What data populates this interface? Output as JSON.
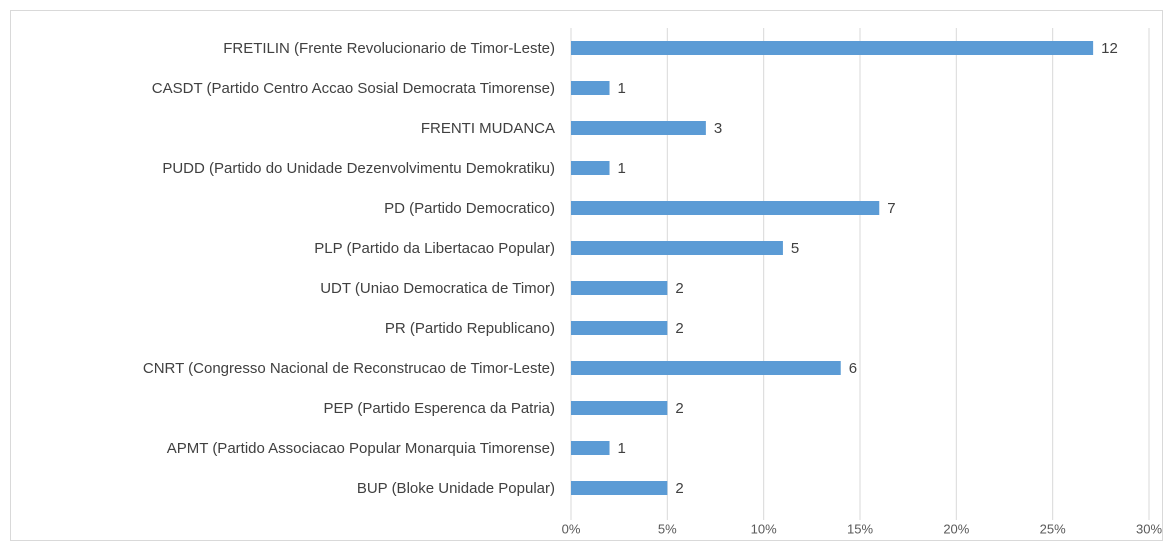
{
  "chart_data": {
    "type": "hbar",
    "categories": [
      "FRETILIN (Frente Revolucionario de Timor-Leste)",
      "CASDT (Partido Centro Accao Sosial Democrata Timorense)",
      "FRENTI MUDANCA",
      "PUDD (Partido do Unidade Dezenvolvimentu Demokratiku)",
      "PD (Partido Democratico)",
      "PLP (Partido da Libertacao Popular)",
      "UDT (Uniao Democratica de Timor)",
      "PR (Partido Republicano)",
      "CNRT (Congresso Nacional de Reconstrucao de Timor-Leste)",
      "PEP (Partido Esperenca da Patria)",
      "APMT (Partido Associacao Popular Monarquia Timorense)",
      "BUP (Bloke Unidade Popular)"
    ],
    "values": [
      27.1,
      2,
      7,
      2,
      16,
      11,
      5,
      5,
      14,
      5,
      2,
      5
    ],
    "counts": [
      12,
      1,
      3,
      1,
      7,
      5,
      2,
      2,
      6,
      2,
      1,
      2
    ],
    "color": "#5b9bd5",
    "xlim": [
      0,
      30
    ],
    "xticks": [
      {
        "value": 0,
        "label": "0%"
      },
      {
        "value": 5,
        "label": "5%"
      },
      {
        "value": 10,
        "label": "10%"
      },
      {
        "value": 15,
        "label": "15%"
      },
      {
        "value": 20,
        "label": "20%"
      },
      {
        "value": 25,
        "label": "25%"
      },
      {
        "value": 30,
        "label": "30%"
      }
    ],
    "grid": true
  }
}
